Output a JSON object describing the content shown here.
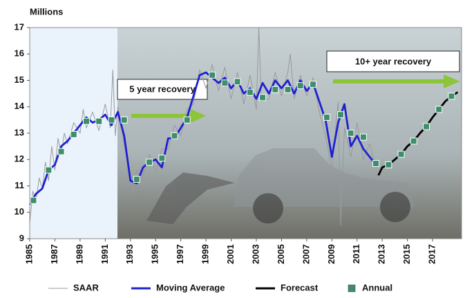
{
  "chart_data": {
    "type": "line",
    "y_label": "Millions",
    "xlim": [
      1985,
      2019.3
    ],
    "ylim": [
      9,
      17
    ],
    "xticks": [
      1985,
      1987,
      1989,
      1991,
      1993,
      1995,
      1997,
      1999,
      2001,
      2003,
      2005,
      2007,
      2009,
      2011,
      2013,
      2015,
      2017
    ],
    "yticks": [
      9,
      10,
      11,
      12,
      13,
      14,
      15,
      16,
      17
    ],
    "annotations": [
      "5 year recovery",
      "10+ year recovery"
    ],
    "series": [
      {
        "name": "SAAR",
        "color": "#999999",
        "x": [
          1985,
          1985.25,
          1985.5,
          1985.75,
          1986,
          1986.25,
          1986.5,
          1986.75,
          1987,
          1987.25,
          1987.5,
          1987.75,
          1988,
          1988.5,
          1989,
          1989.25,
          1989.5,
          1990,
          1990.5,
          1991,
          1991.4,
          1991.6,
          1991.8,
          1992,
          1992.5,
          1993,
          1993.25,
          1993.5,
          1994,
          1994.5,
          1995,
          1995.5,
          1996,
          1996.5,
          1997,
          1997.5,
          1998,
          1998.5,
          1999,
          1999.5,
          2000,
          2000.5,
          2001,
          2001.5,
          2002,
          2002.5,
          2003,
          2003.2,
          2003.4,
          2004,
          2004.5,
          2005,
          2005.5,
          2005.7,
          2006,
          2006.5,
          2007,
          2007.5,
          2008,
          2008.5,
          2009,
          2009.5,
          2009.7,
          2010,
          2010.5,
          2011,
          2011.5,
          2012,
          2012.5
        ],
        "values": [
          9.6,
          10.8,
          10.4,
          11.3,
          10.9,
          11.9,
          11.2,
          12.5,
          11.6,
          12.8,
          12.2,
          13.0,
          12.6,
          13.4,
          13.0,
          13.9,
          13.2,
          13.8,
          13.1,
          14.1,
          13.2,
          15.4,
          12.9,
          14.0,
          12.6,
          11.4,
          10.8,
          11.6,
          11.4,
          12.2,
          11.5,
          12.4,
          12.4,
          13.3,
          12.9,
          13.9,
          14.1,
          15.4,
          14.7,
          15.6,
          14.6,
          15.5,
          14.3,
          15.3,
          14.1,
          15.2,
          13.9,
          17.0,
          14.2,
          14.3,
          15.3,
          14.4,
          15.3,
          16.0,
          14.3,
          15.2,
          14.4,
          15.1,
          13.8,
          12.9,
          11.6,
          14.2,
          9.5,
          13.2,
          12.1,
          13.4,
          12.0,
          12.6,
          11.7
        ]
      },
      {
        "name": "Moving Average",
        "color": "#1f1fd0",
        "x": [
          1985,
          1985.5,
          1986,
          1986.5,
          1987,
          1987.5,
          1988,
          1988.5,
          1989,
          1989.5,
          1990,
          1990.5,
          1991,
          1991.5,
          1992,
          1992.5,
          1993,
          1993.5,
          1994,
          1994.5,
          1995,
          1995.5,
          1996,
          1996.5,
          1997,
          1997.5,
          1998,
          1998.5,
          1999,
          1999.5,
          2000,
          2000.5,
          2001,
          2001.5,
          2002,
          2002.5,
          2003,
          2003.5,
          2004,
          2004.5,
          2005,
          2005.5,
          2006,
          2006.5,
          2007,
          2007.5,
          2008,
          2008.5,
          2009,
          2009.5,
          2010,
          2010.5,
          2011,
          2011.5,
          2012,
          2012.5
        ],
        "values": [
          10.3,
          10.7,
          10.9,
          11.6,
          11.8,
          12.5,
          12.7,
          13.0,
          13.3,
          13.6,
          13.4,
          13.5,
          13.7,
          13.3,
          13.8,
          12.9,
          11.2,
          11.1,
          11.7,
          11.9,
          12.0,
          11.7,
          12.8,
          12.8,
          13.2,
          13.6,
          14.4,
          15.2,
          15.3,
          15.1,
          14.9,
          15.1,
          14.7,
          15.0,
          14.5,
          14.7,
          14.3,
          14.9,
          14.5,
          15.0,
          14.7,
          15.0,
          14.5,
          15.0,
          14.6,
          14.9,
          14.2,
          13.5,
          12.1,
          13.4,
          14.1,
          12.5,
          12.9,
          12.4,
          12.1,
          11.8
        ]
      },
      {
        "name": "Forecast",
        "color": "#000000",
        "x": [
          2012.7,
          2013,
          2013.5,
          2014,
          2014.5,
          2015,
          2015.5,
          2016,
          2016.5,
          2017,
          2017.5,
          2018,
          2018.5,
          2019
        ],
        "values": [
          11.4,
          11.7,
          11.8,
          12.0,
          12.2,
          12.5,
          12.7,
          13.0,
          13.25,
          13.6,
          13.9,
          14.2,
          14.4,
          14.55
        ]
      },
      {
        "name": "Annual",
        "color": "#3d8f6a",
        "marker": "square",
        "x": [
          1985.3,
          1986.5,
          1987.5,
          1988.5,
          1989.5,
          1990.5,
          1991.5,
          1992.5,
          1993.5,
          1994.5,
          1995.5,
          1996.5,
          1997.5,
          1999.5,
          2000.5,
          2001.5,
          2002.5,
          2003.5,
          2004.5,
          2005.5,
          2006.5,
          2007.5,
          2008.6,
          2009.7,
          2010.5,
          2011.5,
          2012.5,
          2013.5,
          2014.5,
          2015.5,
          2016.5,
          2017.5,
          2018.5
        ],
        "values": [
          10.45,
          11.6,
          12.3,
          12.95,
          13.45,
          13.45,
          13.5,
          13.5,
          11.25,
          11.9,
          12.05,
          12.9,
          13.5,
          15.2,
          14.9,
          14.95,
          14.55,
          14.35,
          14.65,
          14.65,
          14.8,
          14.85,
          13.6,
          13.7,
          13.0,
          12.85,
          11.85,
          11.8,
          12.2,
          12.7,
          13.25,
          13.9,
          14.4
        ]
      }
    ]
  }
}
